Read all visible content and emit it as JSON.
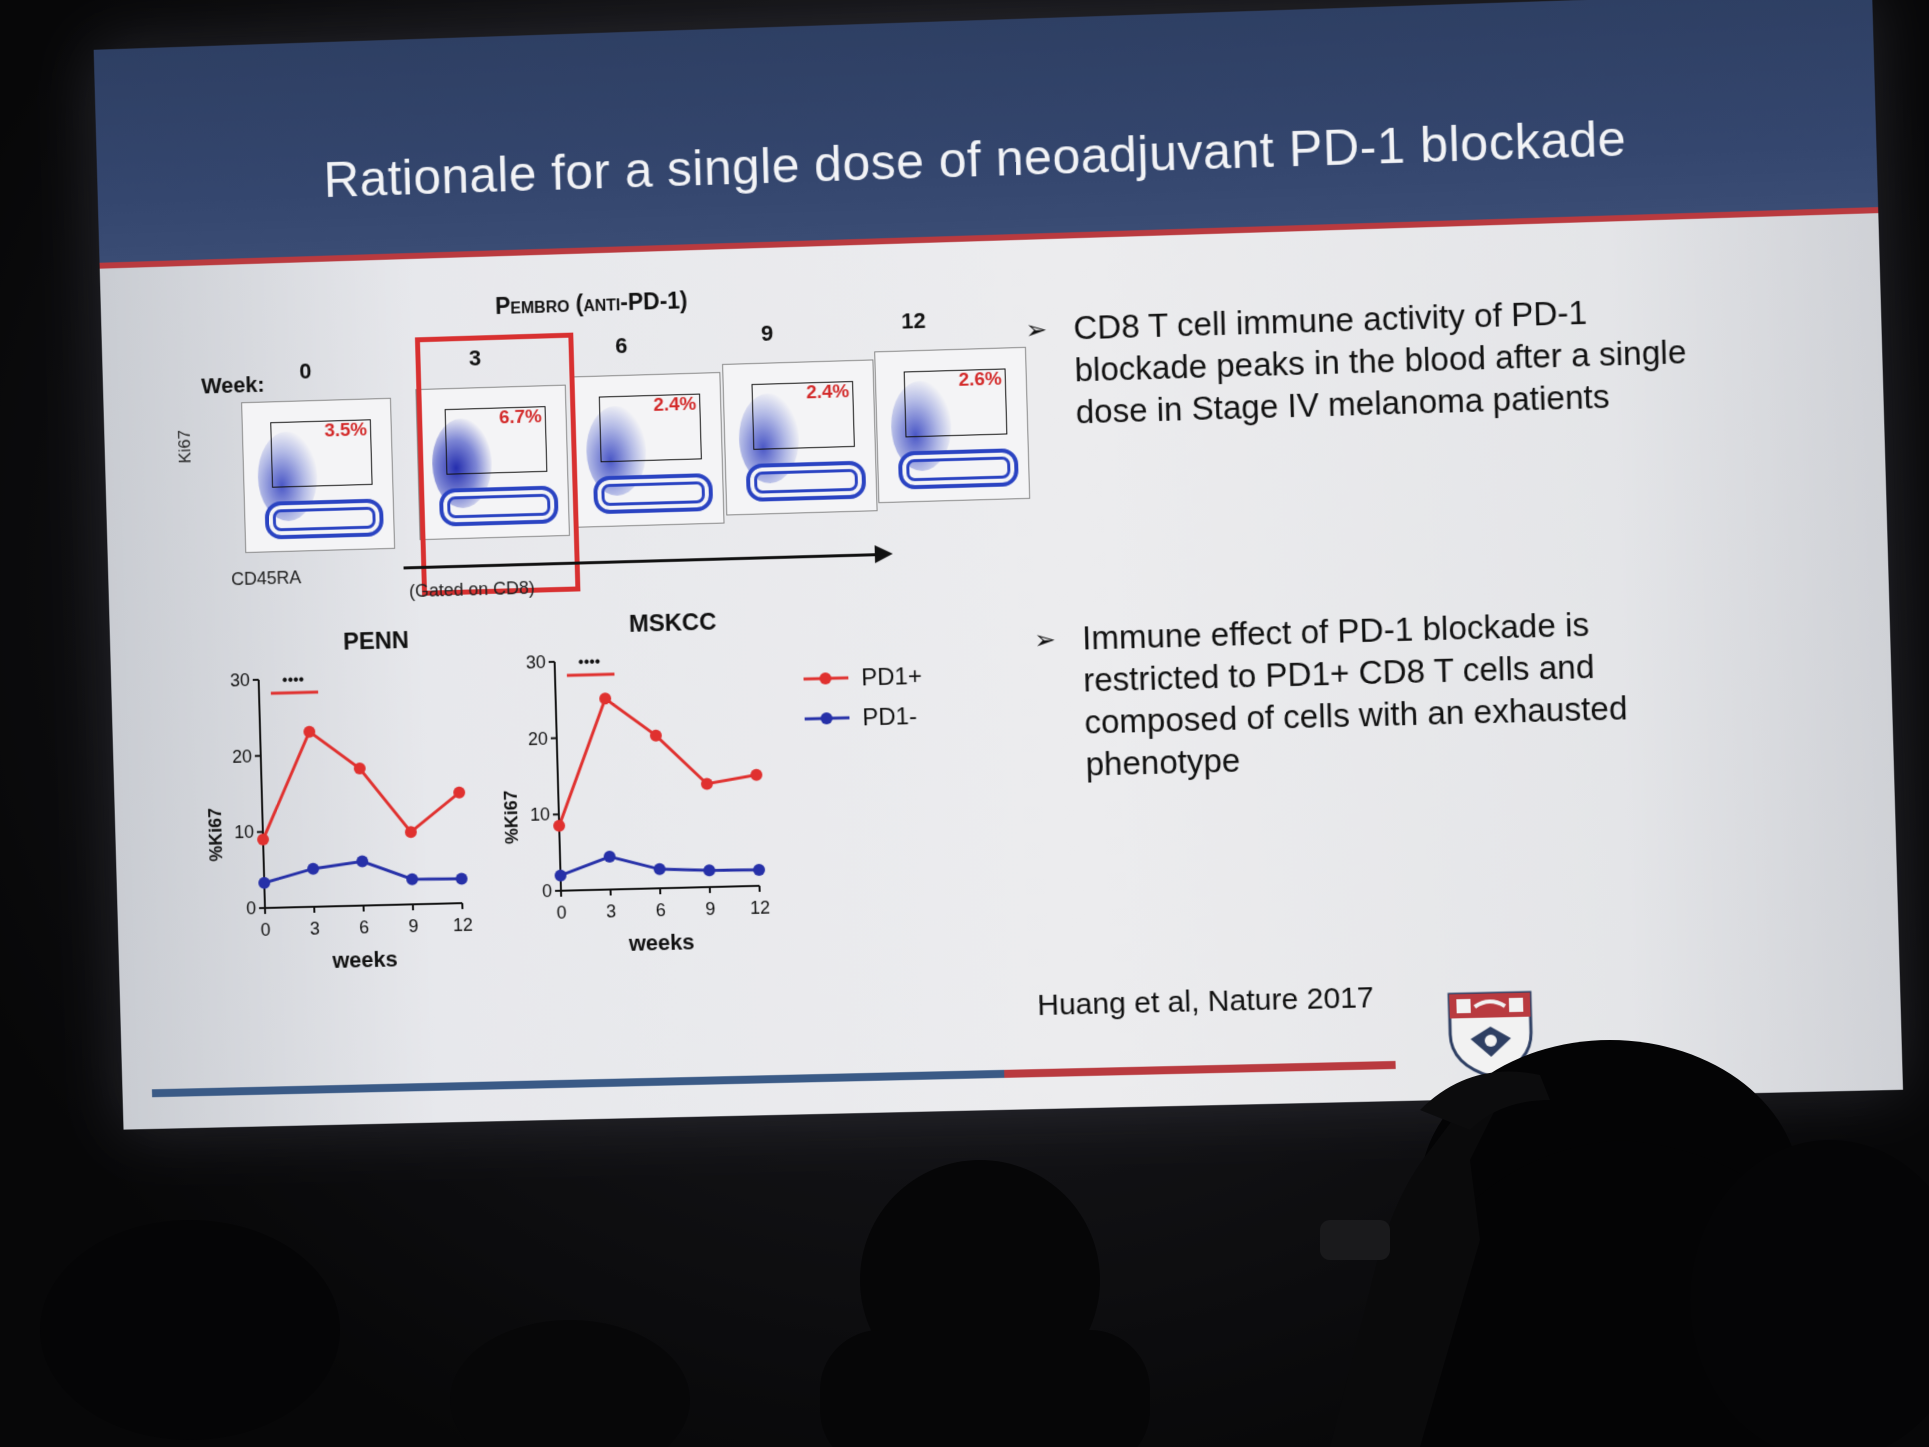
{
  "slide": {
    "title": "Rationale for a single dose of neoadjuvant PD-1 blockade",
    "pembro_label": "Pembro (anti-PD-1)",
    "week_label": "Week:",
    "weeks": [
      {
        "week": "0",
        "pct": "3.5%"
      },
      {
        "week": "3",
        "pct": "6.7%"
      },
      {
        "week": "6",
        "pct": "2.4%"
      },
      {
        "week": "9",
        "pct": "2.4%"
      },
      {
        "week": "12",
        "pct": "2.6%"
      }
    ],
    "y_axis_label": "Ki67",
    "x_axis_label": "CD45RA",
    "gated_note": "(Gated on CD8)",
    "bullets": [
      "CD8 T cell immune activity of PD-1 blockade peaks in the blood after a single dose in Stage IV melanoma patients",
      "Immune effect of PD-1 blockade is restricted to PD1+ CD8 T cells and composed of cells with an exhausted phenotype"
    ],
    "bullet_mark": "➢",
    "citation": "Huang et al, Nature 2017",
    "significance": "••••"
  },
  "colors": {
    "pd1_pos": "#e0312f",
    "pd1_neg": "#2630a8",
    "header": "#34466e",
    "accent_red": "#b93a3f"
  },
  "chart_data": [
    {
      "type": "line",
      "title": "PENN",
      "xlabel": "weeks",
      "ylabel": "%Ki67",
      "x": [
        0,
        3,
        6,
        9,
        12
      ],
      "xticks": [
        "0",
        "3",
        "6",
        "9",
        "12"
      ],
      "yticks": [
        "0",
        "10",
        "20",
        "30"
      ],
      "ylim": [
        0,
        30
      ],
      "series": [
        {
          "name": "PD1+",
          "values": [
            9,
            23,
            18,
            9.5,
            14.5
          ]
        },
        {
          "name": "PD1-",
          "values": [
            3.3,
            5,
            5.8,
            3.3,
            3.2
          ]
        }
      ]
    },
    {
      "type": "line",
      "title": "MSKCC",
      "xlabel": "weeks",
      "ylabel": "%Ki67",
      "x": [
        0,
        3,
        6,
        9,
        12
      ],
      "xticks": [
        "0",
        "3",
        "6",
        "9",
        "12"
      ],
      "yticks": [
        "0",
        "10",
        "20",
        "30"
      ],
      "ylim": [
        0,
        30
      ],
      "series": [
        {
          "name": "PD1+",
          "values": [
            8.5,
            25,
            20,
            13.5,
            14.5
          ]
        },
        {
          "name": "PD1-",
          "values": [
            2,
            4.3,
            2.5,
            2.2,
            2.1
          ]
        }
      ]
    }
  ]
}
